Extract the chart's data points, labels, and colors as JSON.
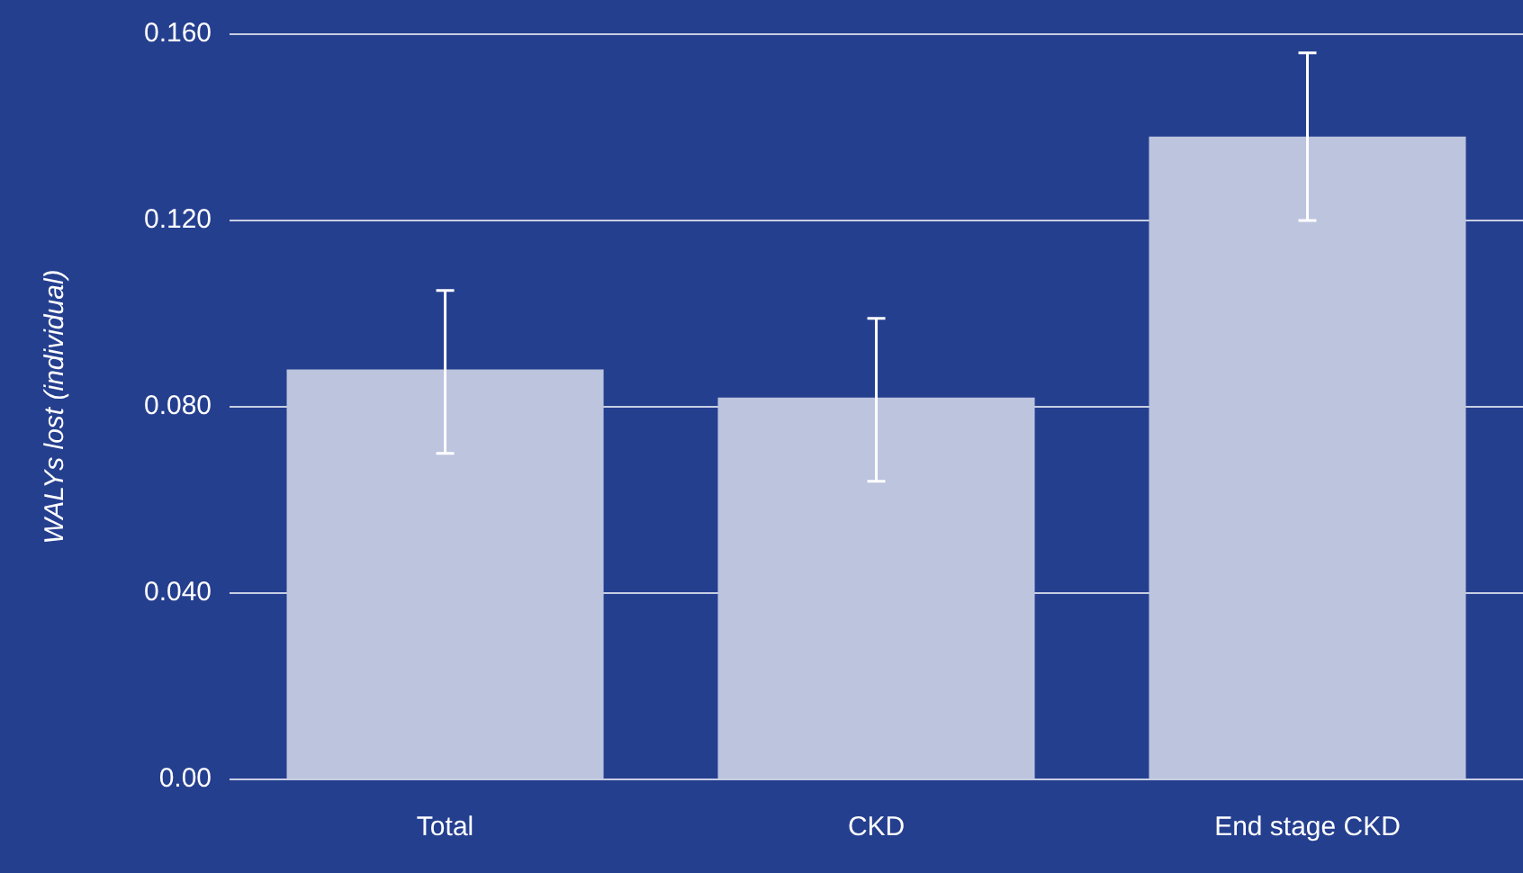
{
  "chart_data": {
    "type": "bar",
    "ylabel": "WALYs lost (individual)",
    "categories": [
      "Total",
      "CKD",
      "End stage CKD"
    ],
    "values": [
      0.088,
      0.082,
      0.138
    ],
    "errors": [
      [
        0.07,
        0.105
      ],
      [
        0.064,
        0.099
      ],
      [
        0.12,
        0.156
      ]
    ],
    "color": "#bcc4de",
    "ylim": [
      0,
      0.16
    ],
    "yticks": [
      {
        "value": 0,
        "label": "0.00"
      },
      {
        "value": 0.04,
        "label": "0.040"
      },
      {
        "value": 0.08,
        "label": "0.080"
      },
      {
        "value": 0.12,
        "label": "0.120"
      },
      {
        "value": 0.16,
        "label": "0.160"
      }
    ],
    "grid": "y",
    "legend": false
  }
}
